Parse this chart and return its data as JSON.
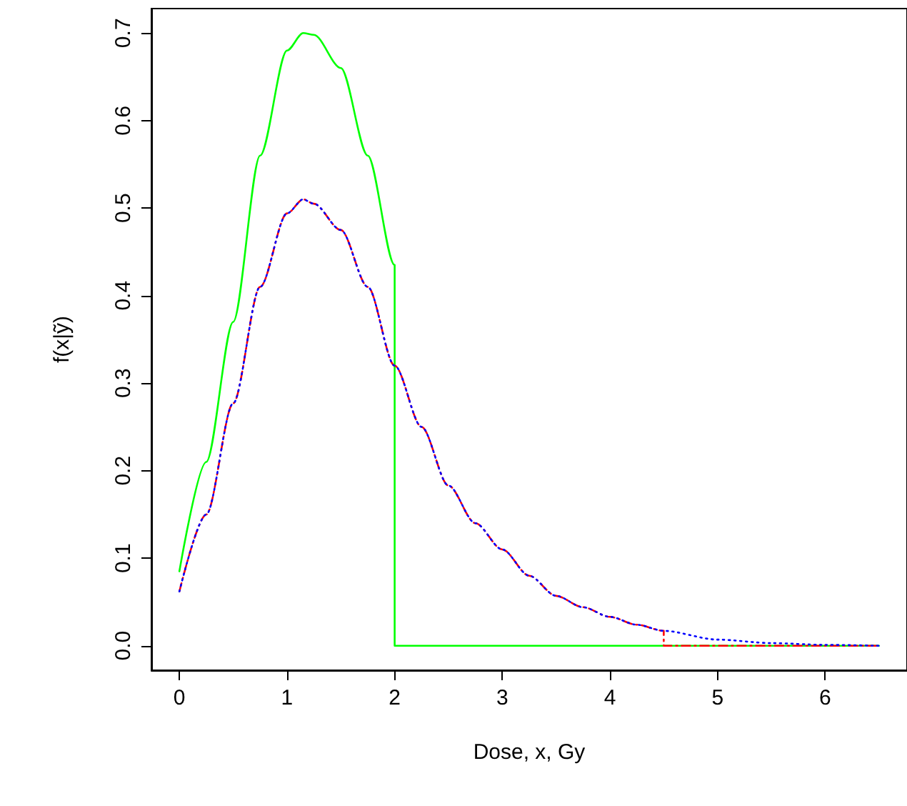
{
  "chart_data": {
    "type": "line",
    "xlabel": "Dose, x, Gy",
    "ylabel": "f(x|ỹ)",
    "xlim": [
      -0.26,
      6.76
    ],
    "ylim": [
      -0.028,
      0.728
    ],
    "xticks": [
      0,
      1,
      2,
      3,
      4,
      5,
      6
    ],
    "yticks": [
      {
        "value": 0,
        "label": "0.0"
      },
      0.1,
      0.2,
      0.3,
      0.4,
      0.5,
      0.6,
      0.7
    ],
    "marker": "none",
    "series": [
      {
        "color": "#00ff00",
        "line_style": "solid",
        "x": [
          0,
          0.25,
          0.5,
          0.75,
          1.0,
          1.15,
          1.25,
          1.5,
          1.75,
          2.0,
          2.0,
          6.5
        ],
        "values": [
          0.085,
          0.21,
          0.37,
          0.56,
          0.68,
          0.7,
          0.698,
          0.66,
          0.56,
          0.435,
          0,
          0
        ]
      },
      {
        "color": "#ff0000",
        "line_style": "dashed",
        "x": [
          0,
          0.25,
          0.5,
          0.75,
          1.0,
          1.15,
          1.25,
          1.5,
          1.75,
          2.0,
          2.25,
          2.5,
          2.75,
          3.0,
          3.25,
          3.5,
          3.75,
          4.0,
          4.25,
          4.5,
          4.5,
          6.5
        ],
        "values": [
          0.062,
          0.15,
          0.277,
          0.41,
          0.494,
          0.51,
          0.505,
          0.475,
          0.41,
          0.32,
          0.25,
          0.183,
          0.14,
          0.11,
          0.08,
          0.057,
          0.044,
          0.033,
          0.024,
          0.017,
          0,
          0
        ]
      },
      {
        "color": "#0000ff",
        "line_style": "dotted",
        "x": [
          0,
          0.25,
          0.5,
          0.75,
          1.0,
          1.15,
          1.25,
          1.5,
          1.75,
          2.0,
          2.25,
          2.5,
          2.75,
          3.0,
          3.25,
          3.5,
          3.75,
          4.0,
          4.25,
          4.5,
          5.0,
          5.5,
          6.0,
          6.5
        ],
        "values": [
          0.062,
          0.15,
          0.277,
          0.41,
          0.494,
          0.51,
          0.505,
          0.475,
          0.41,
          0.32,
          0.25,
          0.183,
          0.14,
          0.11,
          0.08,
          0.057,
          0.044,
          0.033,
          0.024,
          0.017,
          0.007,
          0.003,
          0.001,
          0
        ]
      }
    ]
  }
}
